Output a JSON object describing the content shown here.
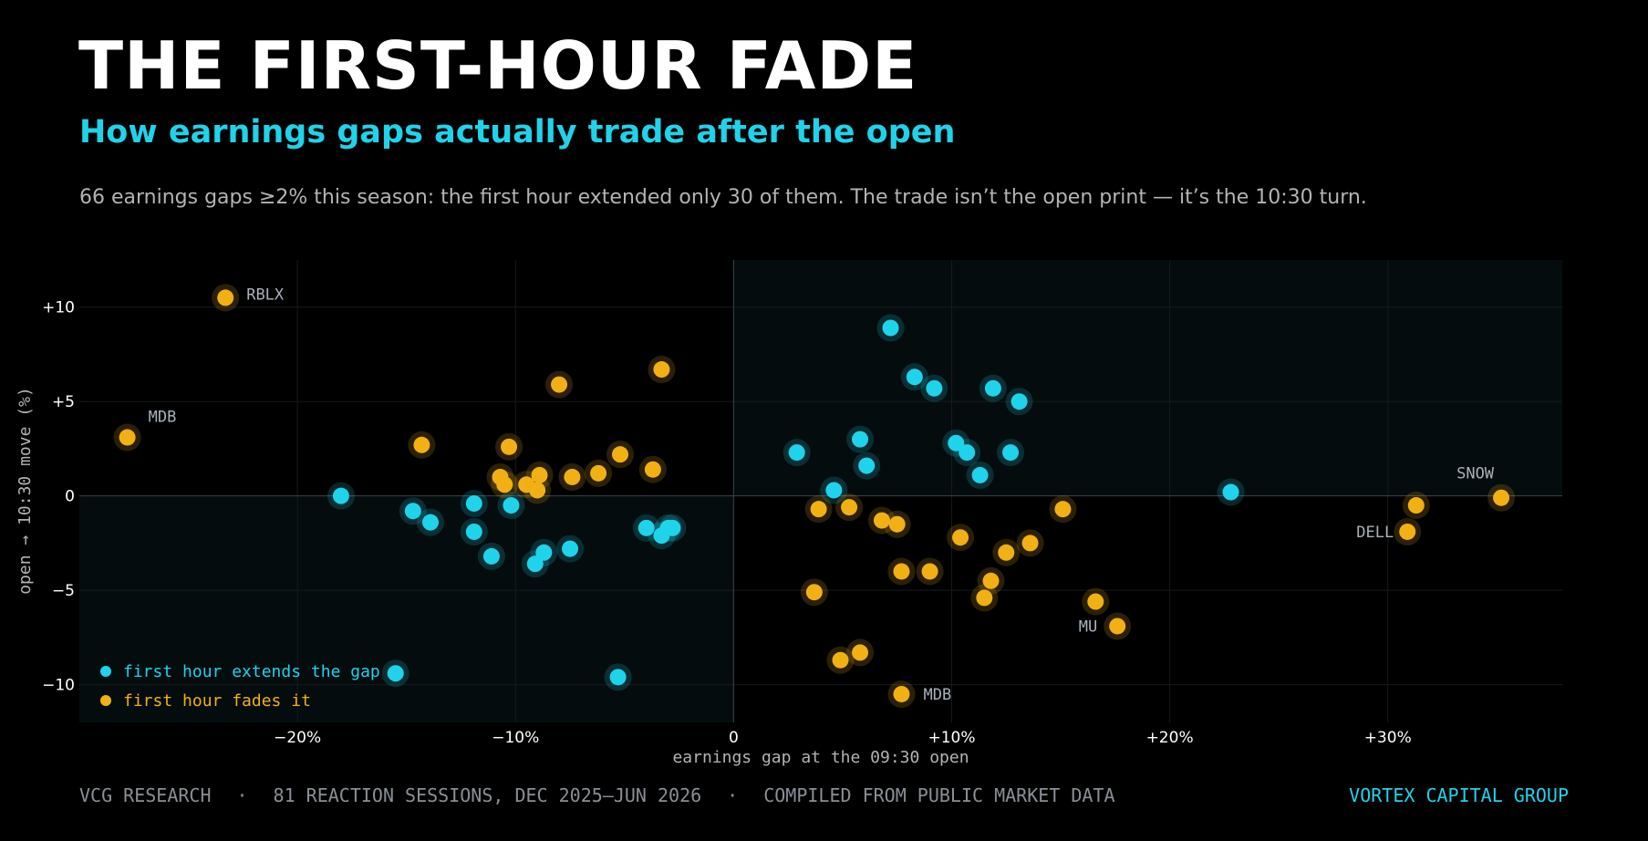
{
  "header": {
    "title": "THE FIRST-HOUR FADE",
    "subtitle": "How earnings gaps actually trade after the open",
    "description": "66 earnings gaps ≥2% this season: the first hour extended only 30 of them. The trade isn’t the open print — it’s the 10:30 turn."
  },
  "footer": {
    "left_items": [
      "VCG RESEARCH",
      "81 REACTION SESSIONS, DEC 2025–JUN 2026",
      "COMPILED FROM PUBLIC MARKET DATA"
    ],
    "separator": "·",
    "brand": "VORTEX CAPITAL GROUP"
  },
  "colors": {
    "background": "#000000",
    "extend": "#1fd3ea",
    "fade": "#f1b014",
    "title": "#ffffff",
    "annotation": "#aab1bb"
  },
  "chart_data": {
    "type": "scatter",
    "xlabel": "earnings gap at the 09:30 open",
    "ylabel": "open → 10:30 move  (%)",
    "xlim": [
      -30,
      38
    ],
    "ylim": [
      -12,
      12.5
    ],
    "x_ticks": [
      -20,
      -10,
      0,
      10,
      20,
      30
    ],
    "x_tick_labels": [
      "−20%",
      "−10%",
      "0",
      "+10%",
      "+20%",
      "+30%"
    ],
    "y_ticks": [
      -10,
      -5,
      0,
      5,
      10
    ],
    "y_tick_labels": [
      "−10",
      "−5",
      "0",
      "+5",
      "+10"
    ],
    "grid": true,
    "legend_position": "bottom-left",
    "series": [
      {
        "name": "first hour extends the gap",
        "color": "#1fd3ea",
        "points": [
          [
            -18.0,
            0.0
          ],
          [
            -15.5,
            -9.4
          ],
          [
            -14.7,
            -0.8
          ],
          [
            -13.9,
            -1.4
          ],
          [
            -11.9,
            -0.4
          ],
          [
            -11.9,
            -1.9
          ],
          [
            -11.1,
            -3.2
          ],
          [
            -10.2,
            -0.5
          ],
          [
            -9.1,
            -3.6
          ],
          [
            -8.7,
            -3.0
          ],
          [
            -7.5,
            -2.8
          ],
          [
            -5.3,
            -9.6
          ],
          [
            -4.0,
            -1.7
          ],
          [
            -3.3,
            -2.1
          ],
          [
            -3.0,
            -1.7
          ],
          [
            -2.8,
            -1.7
          ],
          [
            2.9,
            2.3
          ],
          [
            4.6,
            0.3
          ],
          [
            5.8,
            3.0
          ],
          [
            6.1,
            1.6
          ],
          [
            7.2,
            8.9
          ],
          [
            8.3,
            6.3
          ],
          [
            9.2,
            5.7
          ],
          [
            10.2,
            2.8
          ],
          [
            10.7,
            2.3
          ],
          [
            11.3,
            1.1
          ],
          [
            11.9,
            5.7
          ],
          [
            12.7,
            2.3
          ],
          [
            13.1,
            5.0
          ],
          [
            22.8,
            0.2
          ]
        ]
      },
      {
        "name": "first hour fades it",
        "color": "#f1b014",
        "points": [
          [
            -27.8,
            3.1
          ],
          [
            -23.3,
            10.5
          ],
          [
            -14.3,
            2.7
          ],
          [
            -10.7,
            1.0
          ],
          [
            -10.5,
            0.6
          ],
          [
            -10.3,
            2.6
          ],
          [
            -9.5,
            0.6
          ],
          [
            -8.9,
            1.1
          ],
          [
            -9.0,
            0.3
          ],
          [
            -8.0,
            5.9
          ],
          [
            -7.4,
            1.0
          ],
          [
            -6.2,
            1.2
          ],
          [
            -5.2,
            2.2
          ],
          [
            -3.7,
            1.4
          ],
          [
            -3.3,
            6.7
          ],
          [
            3.7,
            -5.1
          ],
          [
            3.9,
            -0.7
          ],
          [
            4.9,
            -8.7
          ],
          [
            5.3,
            -0.6
          ],
          [
            5.8,
            -8.3
          ],
          [
            6.8,
            -1.3
          ],
          [
            7.5,
            -1.5
          ],
          [
            7.7,
            -4.0
          ],
          [
            7.7,
            -10.5
          ],
          [
            9.0,
            -4.0
          ],
          [
            10.4,
            -2.2
          ],
          [
            11.5,
            -5.4
          ],
          [
            11.8,
            -4.5
          ],
          [
            12.5,
            -3.0
          ],
          [
            13.6,
            -2.5
          ],
          [
            15.1,
            -0.7
          ],
          [
            16.6,
            -5.6
          ],
          [
            17.6,
            -6.9
          ],
          [
            30.9,
            -1.9
          ],
          [
            31.3,
            -0.5
          ],
          [
            35.2,
            -0.1
          ]
        ]
      }
    ],
    "annotations": [
      {
        "label": "RBLX",
        "x": -23.3,
        "y": 10.5
      },
      {
        "label": "MDB",
        "x": -27.8,
        "y": 3.1
      },
      {
        "label": "MDB",
        "x": 7.7,
        "y": -10.5
      },
      {
        "label": "SNOW",
        "x": 35.2,
        "y": -0.1
      },
      {
        "label": "DELL",
        "x": 30.9,
        "y": -1.9
      },
      {
        "label": "MU",
        "x": 17.6,
        "y": -6.9
      }
    ]
  }
}
